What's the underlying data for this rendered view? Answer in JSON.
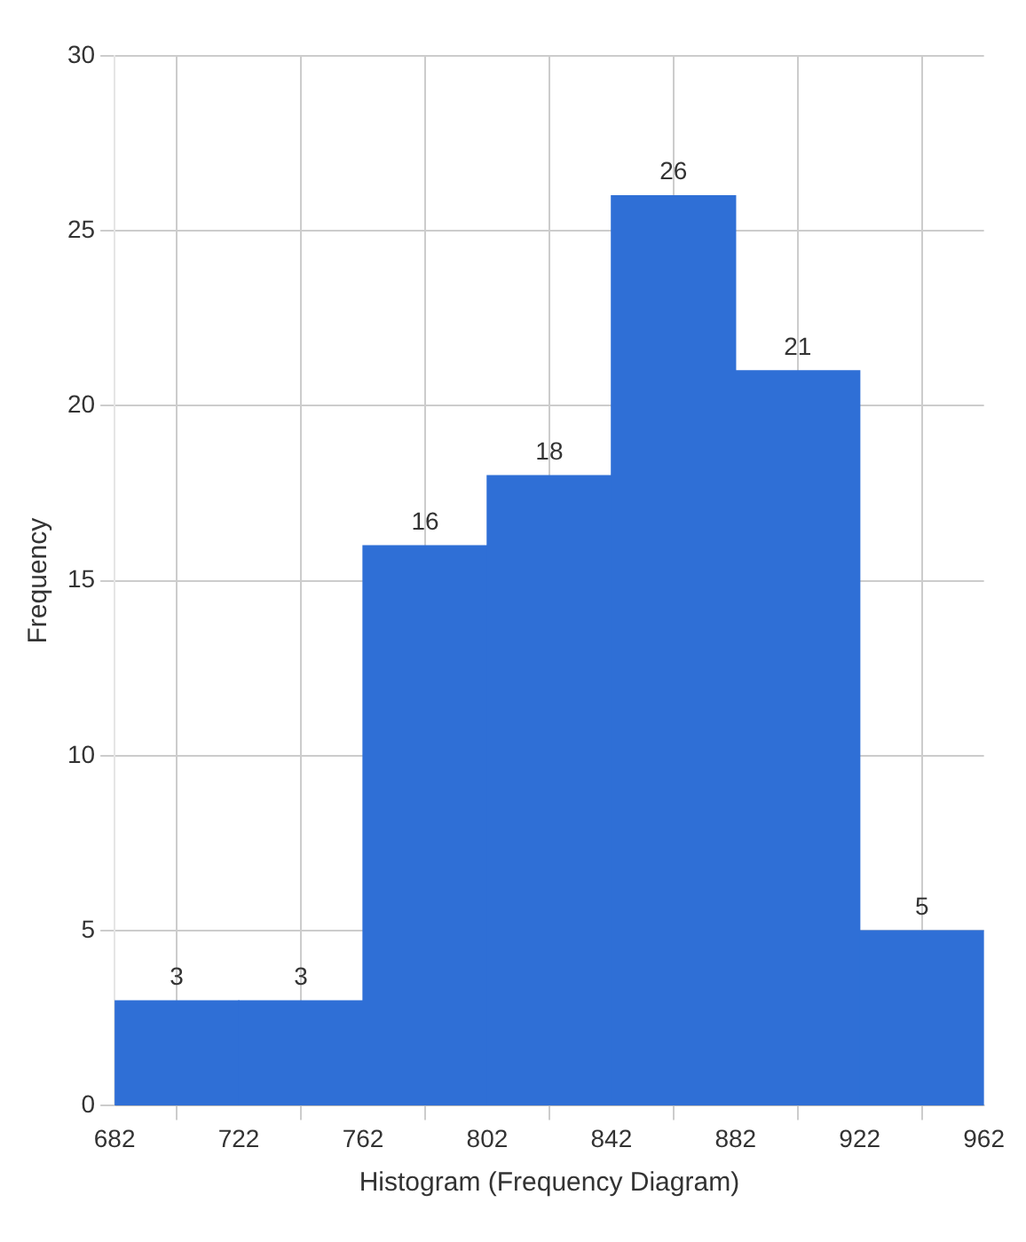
{
  "chart_data": {
    "type": "histogram",
    "xlabel": "Histogram (Frequency Diagram)",
    "ylabel": "Frequency",
    "bins": [
      682,
      722,
      762,
      802,
      842,
      882,
      922,
      962
    ],
    "values": [
      3,
      3,
      16,
      18,
      26,
      21,
      5
    ],
    "color": "#2f6fd6",
    "xlim": [
      682,
      962
    ],
    "xticks": [
      682,
      722,
      762,
      802,
      842,
      882,
      922,
      962
    ],
    "ylim": [
      0,
      30
    ],
    "yticks": [
      0,
      5,
      10,
      15,
      20,
      25,
      30
    ],
    "grid": true,
    "data_labels": true
  }
}
